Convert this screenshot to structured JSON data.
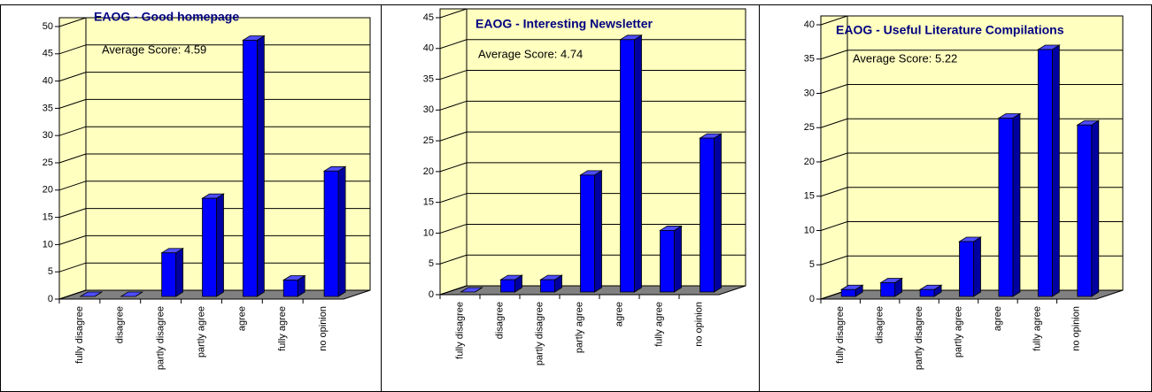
{
  "chart_data": [
    {
      "type": "bar",
      "title": "EAOG - Good homepage",
      "annotation": "Average Score: 4.59",
      "categories": [
        "fully disagree",
        "disagree",
        "partly disagree",
        "partly agree",
        "agree",
        "fully agree",
        "no opinion"
      ],
      "values": [
        0,
        0,
        8,
        18,
        47,
        3,
        23
      ],
      "color": "#0000ff",
      "ylim": [
        0,
        50
      ],
      "yticks": [
        0,
        5,
        10,
        15,
        20,
        25,
        30,
        35,
        40,
        45,
        50
      ],
      "grid": true
    },
    {
      "type": "bar",
      "title": "EAOG - Interesting Newsletter",
      "annotation": "Average Score: 4.74",
      "categories": [
        "fully disagree",
        "disagree",
        "partly disagree",
        "partly agree",
        "agree",
        "fully agree",
        "no opinion"
      ],
      "values": [
        0,
        2,
        2,
        19,
        41,
        10,
        25
      ],
      "color": "#0000ff",
      "ylim": [
        0,
        45
      ],
      "yticks": [
        0,
        5,
        10,
        15,
        20,
        25,
        30,
        35,
        40,
        45
      ],
      "grid": true
    },
    {
      "type": "bar",
      "title": "EAOG - Useful Literature Compilations",
      "annotation": "Average Score: 5.22",
      "categories": [
        "fully disagree",
        "disagree",
        "partly disagree",
        "partly agree",
        "agree",
        "fully agree",
        "no opinion"
      ],
      "values": [
        1,
        2,
        1,
        8,
        26,
        36,
        25
      ],
      "color": "#0000ff",
      "ylim": [
        0,
        40
      ],
      "yticks": [
        0,
        5,
        10,
        15,
        20,
        25,
        30,
        35,
        40
      ],
      "grid": true
    }
  ]
}
